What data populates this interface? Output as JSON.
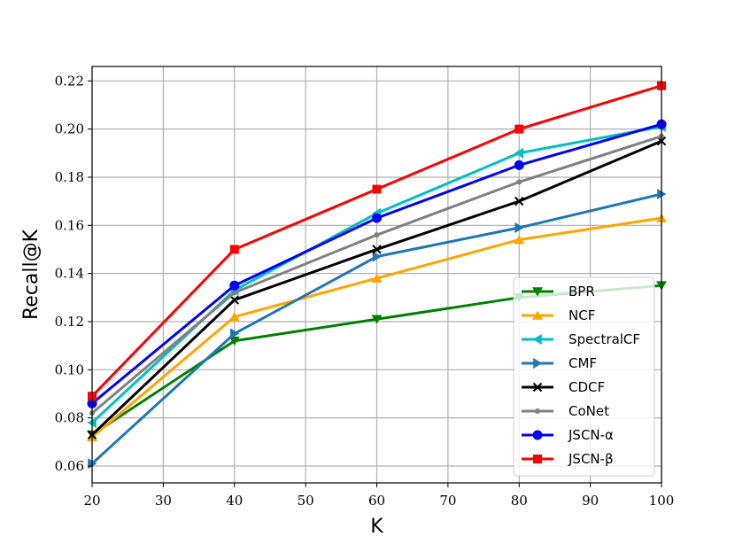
{
  "chart_data": {
    "type": "line",
    "xlabel": "K",
    "ylabel": "Recall@K",
    "xlim": [
      20,
      100
    ],
    "ylim": [
      0.053,
      0.226
    ],
    "xticks": [
      "20",
      "30",
      "40",
      "50",
      "60",
      "70",
      "80",
      "90",
      "100"
    ],
    "yticks": [
      "0.06",
      "0.08",
      "0.10",
      "0.12",
      "0.14",
      "0.16",
      "0.18",
      "0.20",
      "0.22"
    ],
    "grid": true,
    "legend_position": "lower-right",
    "x": [
      20,
      40,
      60,
      80,
      100
    ],
    "series": [
      {
        "name": "BPR",
        "marker": "triangle-down",
        "color": "#008000",
        "values": [
          0.073,
          0.112,
          0.121,
          0.13,
          0.135
        ]
      },
      {
        "name": "NCF",
        "marker": "triangle-up",
        "color": "#ffa500",
        "values": [
          0.072,
          0.122,
          0.138,
          0.154,
          0.163
        ]
      },
      {
        "name": "SpectralCF",
        "marker": "triangle-left",
        "color": "#00bfbf",
        "values": [
          0.078,
          0.133,
          0.165,
          0.19,
          0.201
        ]
      },
      {
        "name": "CMF",
        "marker": "triangle-right",
        "color": "#1f77b4",
        "values": [
          0.061,
          0.115,
          0.147,
          0.159,
          0.173
        ]
      },
      {
        "name": "CDCF",
        "marker": "x",
        "color": "#000000",
        "values": [
          0.073,
          0.129,
          0.15,
          0.17,
          0.195
        ]
      },
      {
        "name": "CoNet",
        "marker": "point",
        "color": "#808080",
        "values": [
          0.082,
          0.132,
          0.156,
          0.178,
          0.197
        ]
      },
      {
        "name": "JSCN-α",
        "marker": "circle",
        "color": "#0000ff",
        "values": [
          0.086,
          0.135,
          0.163,
          0.185,
          0.202
        ]
      },
      {
        "name": "JSCN-β",
        "marker": "square",
        "color": "#ff0000",
        "values": [
          0.089,
          0.15,
          0.175,
          0.2,
          0.218
        ]
      }
    ]
  }
}
